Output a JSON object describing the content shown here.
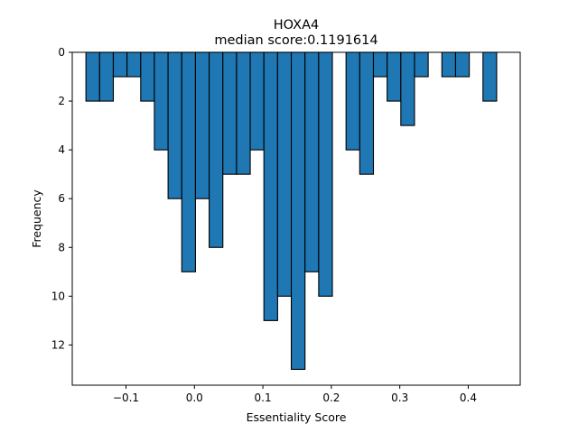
{
  "chart_data": {
    "type": "bar",
    "title": "HOXA4",
    "subtitle": "median score:0.1191614",
    "xlabel": "Essentiality Score",
    "ylabel": "Frequency",
    "bar_color": "#1f77b4",
    "edge_color": "#000000",
    "y_inverted": true,
    "x_axis_position": "bottom",
    "grid": false,
    "legend": "none",
    "xlim": [
      -0.1785,
      0.4759
    ],
    "ylim": [
      13.65,
      0
    ],
    "x_ticks": [
      -0.1,
      0.0,
      0.1,
      0.2,
      0.3,
      0.4
    ],
    "x_tick_labels": [
      "−0.1",
      "0.0",
      "0.1",
      "0.2",
      "0.3",
      "0.4"
    ],
    "y_ticks": [
      0,
      2,
      4,
      6,
      8,
      10,
      12
    ],
    "y_tick_labels": [
      "0",
      "2",
      "4",
      "6",
      "8",
      "10",
      "12"
    ],
    "bin_width": 0.02,
    "bins": [
      {
        "start": -0.1585,
        "count": 2
      },
      {
        "start": -0.1385,
        "count": 2
      },
      {
        "start": -0.1185,
        "count": 1
      },
      {
        "start": -0.0985,
        "count": 1
      },
      {
        "start": -0.0785,
        "count": 2
      },
      {
        "start": -0.0585,
        "count": 4
      },
      {
        "start": -0.0385,
        "count": 6
      },
      {
        "start": -0.0185,
        "count": 9
      },
      {
        "start": 0.0015,
        "count": 6
      },
      {
        "start": 0.0215,
        "count": 8
      },
      {
        "start": 0.0415,
        "count": 5
      },
      {
        "start": 0.0615,
        "count": 5
      },
      {
        "start": 0.0815,
        "count": 4
      },
      {
        "start": 0.1015,
        "count": 11
      },
      {
        "start": 0.1215,
        "count": 10
      },
      {
        "start": 0.1415,
        "count": 13
      },
      {
        "start": 0.1615,
        "count": 9
      },
      {
        "start": 0.1815,
        "count": 10
      },
      {
        "start": 0.2215,
        "count": 4
      },
      {
        "start": 0.2415,
        "count": 5
      },
      {
        "start": 0.2615,
        "count": 1
      },
      {
        "start": 0.2815,
        "count": 2
      },
      {
        "start": 0.3015,
        "count": 3
      },
      {
        "start": 0.3215,
        "count": 1
      },
      {
        "start": 0.3615,
        "count": 1
      },
      {
        "start": 0.3815,
        "count": 1
      },
      {
        "start": 0.4215,
        "count": 2
      }
    ]
  }
}
